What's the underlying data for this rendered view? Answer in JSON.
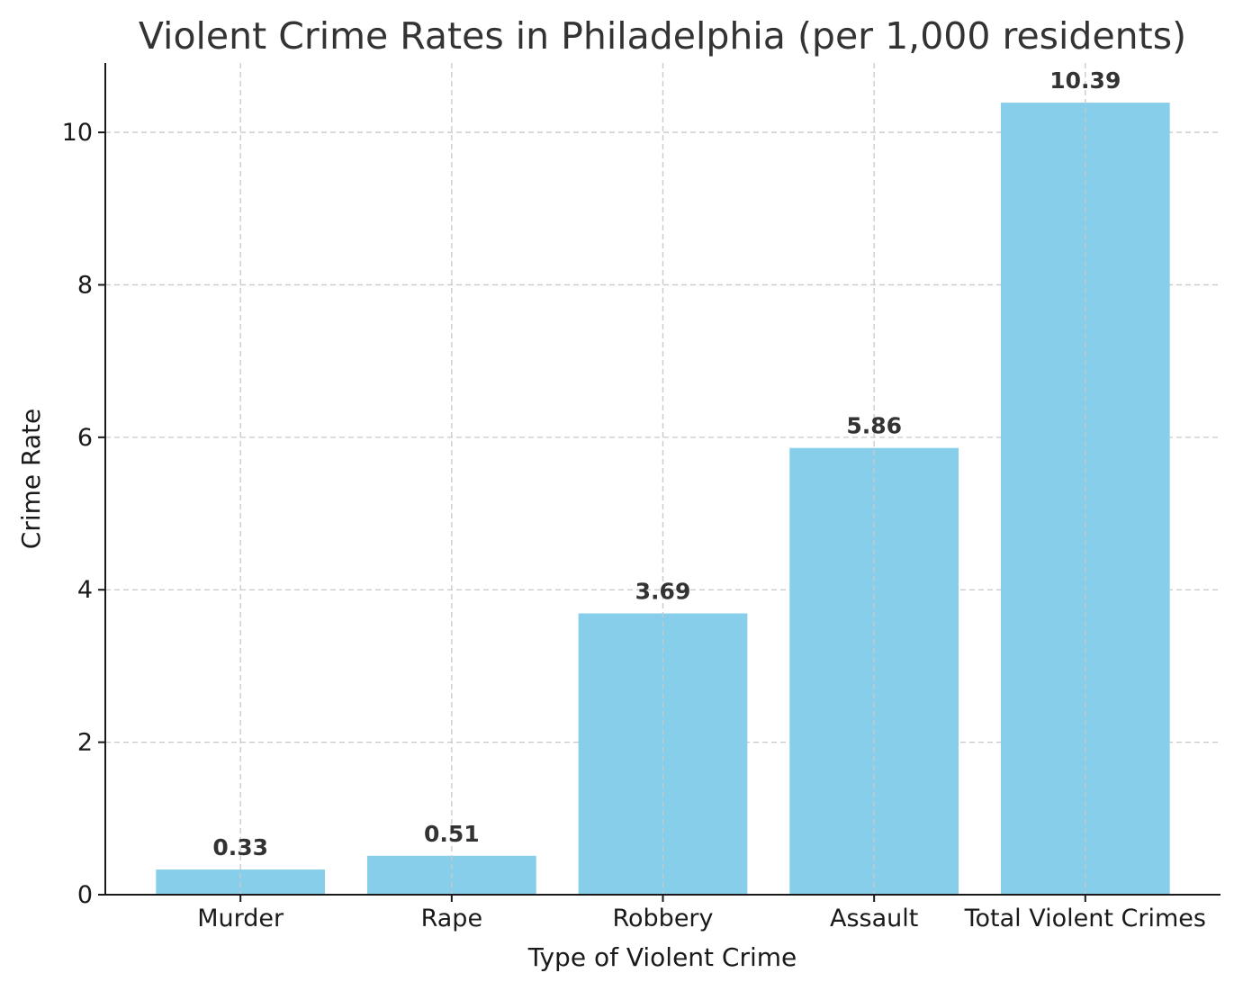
{
  "chart_data": {
    "type": "bar",
    "title": "Violent Crime Rates in Philadelphia (per 1,000 residents)",
    "xlabel": "Type of Violent Crime",
    "ylabel": "Crime Rate",
    "categories": [
      "Murder",
      "Rape",
      "Robbery",
      "Assault",
      "Total Violent Crimes"
    ],
    "values": [
      0.33,
      0.51,
      3.69,
      5.86,
      10.39
    ],
    "data_labels": [
      "0.33",
      "0.51",
      "3.69",
      "5.86",
      "10.39"
    ],
    "ylim": [
      0,
      10.91
    ],
    "yticks": [
      0,
      2,
      4,
      6,
      8,
      10
    ],
    "grid": true,
    "bar_color": "#87CEEB"
  }
}
